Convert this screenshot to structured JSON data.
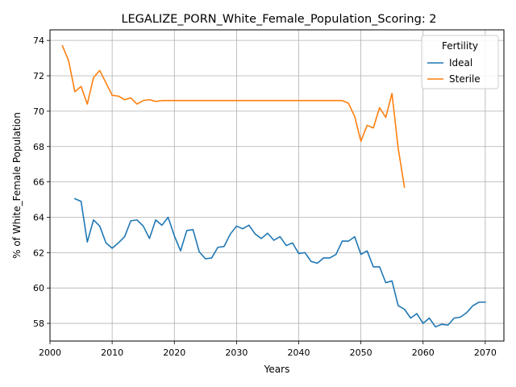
{
  "chart_data": {
    "type": "line",
    "title": "LEGALIZE_PORN_White_Female_Population_Scoring: 2",
    "xlabel": "Years",
    "ylabel": "% of White_Female Population",
    "xlim": [
      2000,
      2073
    ],
    "ylim": [
      57,
      74.6
    ],
    "xticks": [
      2000,
      2010,
      2020,
      2030,
      2040,
      2050,
      2060,
      2070
    ],
    "yticks": [
      58,
      60,
      62,
      64,
      66,
      68,
      70,
      72,
      74
    ],
    "grid": true,
    "legend": {
      "title": "Fertility",
      "placement": "top-right"
    },
    "series": [
      {
        "name": "Ideal",
        "color": "#1f77b4",
        "x": [
          2004,
          2005,
          2006,
          2007,
          2008,
          2009,
          2010,
          2011,
          2012,
          2013,
          2014,
          2015,
          2016,
          2017,
          2018,
          2019,
          2020,
          2021,
          2022,
          2023,
          2024,
          2025,
          2026,
          2027,
          2028,
          2029,
          2030,
          2031,
          2032,
          2033,
          2034,
          2035,
          2036,
          2037,
          2038,
          2039,
          2040,
          2041,
          2042,
          2043,
          2044,
          2045,
          2046,
          2047,
          2048,
          2049,
          2050,
          2051,
          2052,
          2053,
          2054,
          2055,
          2056,
          2057,
          2058,
          2059,
          2060,
          2061,
          2062,
          2063,
          2064,
          2065,
          2066,
          2067,
          2068,
          2069,
          2070
        ],
        "y": [
          65.05,
          64.9,
          62.6,
          63.85,
          63.5,
          62.55,
          62.25,
          62.55,
          62.9,
          63.8,
          63.85,
          63.5,
          62.8,
          63.85,
          63.55,
          64.0,
          62.95,
          62.1,
          63.25,
          63.3,
          62.05,
          61.65,
          61.7,
          62.3,
          62.35,
          63.05,
          63.5,
          63.35,
          63.55,
          63.05,
          62.8,
          63.1,
          62.7,
          62.9,
          62.4,
          62.55,
          61.95,
          62.0,
          61.5,
          61.4,
          61.7,
          61.7,
          61.9,
          62.65,
          62.65,
          62.9,
          61.9,
          62.1,
          61.2,
          61.2,
          60.3,
          60.4,
          59.0,
          58.8,
          58.3,
          58.55,
          58.0,
          58.3,
          57.8,
          57.95,
          57.9,
          58.3,
          58.35,
          58.6,
          59.0,
          59.2,
          59.2
        ]
      },
      {
        "name": "Sterile",
        "color": "#ff7f0e",
        "x": [
          2002,
          2003,
          2004,
          2005,
          2006,
          2007,
          2008,
          2009,
          2010,
          2011,
          2012,
          2013,
          2014,
          2015,
          2016,
          2017,
          2018,
          2019,
          2020,
          2021,
          2022,
          2023,
          2024,
          2025,
          2026,
          2027,
          2028,
          2029,
          2030,
          2031,
          2032,
          2033,
          2034,
          2035,
          2036,
          2037,
          2038,
          2039,
          2040,
          2041,
          2042,
          2043,
          2044,
          2045,
          2046,
          2047,
          2048,
          2049,
          2050,
          2051,
          2052,
          2053,
          2054,
          2055,
          2056,
          2057
        ],
        "y": [
          73.7,
          72.85,
          71.1,
          71.4,
          70.4,
          71.9,
          72.3,
          71.6,
          70.9,
          70.85,
          70.65,
          70.75,
          70.4,
          70.6,
          70.65,
          70.55,
          70.6,
          70.6,
          70.6,
          70.6,
          70.6,
          70.6,
          70.6,
          70.6,
          70.6,
          70.6,
          70.6,
          70.6,
          70.6,
          70.6,
          70.6,
          70.6,
          70.6,
          70.6,
          70.6,
          70.6,
          70.6,
          70.6,
          70.6,
          70.6,
          70.6,
          70.6,
          70.6,
          70.6,
          70.6,
          70.6,
          70.45,
          69.7,
          68.3,
          69.2,
          69.05,
          70.2,
          69.65,
          71.0,
          67.9,
          65.7
        ]
      }
    ]
  }
}
